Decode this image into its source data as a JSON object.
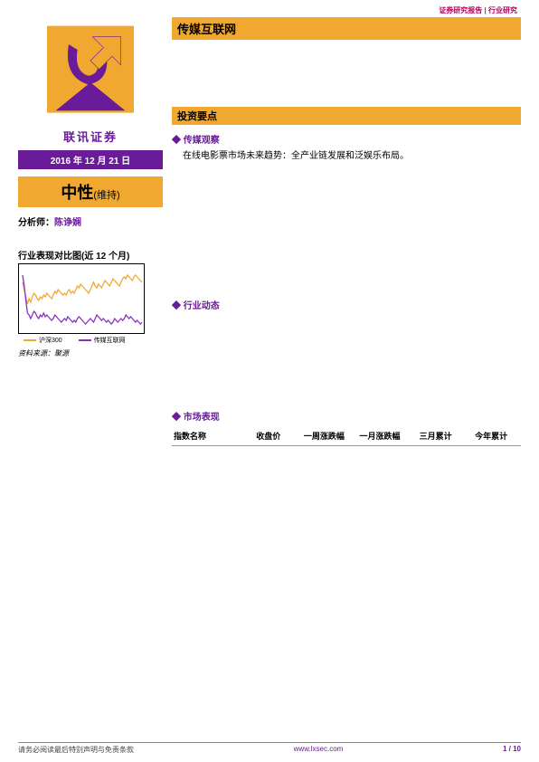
{
  "header": {
    "left": "证券研究报告",
    "sep": " | ",
    "right": "行业研究"
  },
  "logo": {
    "text": "联讯证券",
    "colors": {
      "orange": "#f0a830",
      "purple": "#6a1b9a",
      "dark": "#5a1080"
    }
  },
  "date_bar": "2016 年 12 月 21 日",
  "rating": {
    "main": "中性",
    "sub": "(维持)"
  },
  "analyst": {
    "label": "分析师：",
    "name": "陈诤娴"
  },
  "chart": {
    "title": "行业表现对比图(近 12 个月)",
    "source_label": "资料来源：聚源",
    "legend": [
      {
        "label": "沪深300",
        "color": "#f0a830"
      },
      {
        "label": "传媒互联网",
        "color": "#8a2fc4"
      }
    ],
    "series": {
      "csi300": {
        "color": "#f0a830",
        "width": 1.3,
        "values": [
          42,
          38,
          34,
          30,
          33,
          31,
          34,
          36,
          35,
          33,
          32,
          34,
          33,
          35,
          34,
          36,
          35,
          34,
          33,
          35,
          37,
          36,
          38,
          37,
          36,
          35,
          36,
          35,
          37,
          38,
          36,
          37,
          36,
          38,
          40,
          39,
          41,
          40,
          39,
          38,
          37,
          36,
          38,
          40,
          42,
          40,
          39,
          41,
          40,
          39,
          41,
          43,
          42,
          41,
          40,
          42,
          44,
          43,
          42,
          41,
          40,
          42,
          44,
          45,
          44,
          46,
          45,
          44,
          43,
          45,
          46,
          45,
          44,
          43,
          42
        ]
      },
      "media": {
        "color": "#8a2fc4",
        "width": 1.3,
        "values": [
          46,
          40,
          32,
          25,
          24,
          22,
          24,
          26,
          25,
          23,
          22,
          24,
          23,
          25,
          23,
          24,
          23,
          22,
          21,
          22,
          24,
          23,
          22,
          21,
          20,
          21,
          22,
          21,
          23,
          22,
          21,
          20,
          21,
          20,
          22,
          23,
          22,
          21,
          20,
          19,
          20,
          21,
          22,
          21,
          20,
          22,
          24,
          23,
          22,
          21,
          22,
          21,
          20,
          21,
          20,
          19,
          20,
          22,
          21,
          20,
          21,
          22,
          21,
          22,
          24,
          23,
          22,
          23,
          22,
          21,
          20,
          21,
          20,
          19,
          20
        ]
      }
    },
    "ylim": [
      15,
      50
    ],
    "background": "#ffffff"
  },
  "title_bar": "传媒互联网",
  "subtitle_bar": "投资要点",
  "sections": [
    {
      "head": "传媒观察",
      "body": "在线电影票市场未来趋势：全产业链发展和泛娱乐布局。",
      "spacer": 140
    },
    {
      "head": "行业动态",
      "body": "",
      "spacer": 100
    },
    {
      "head": "市场表现",
      "body": "",
      "spacer": 0
    }
  ],
  "table": {
    "columns": [
      "指数名称",
      "收盘价",
      "一周涨跌幅",
      "一月涨跌幅",
      "三月累计",
      "今年累计"
    ]
  },
  "footer": {
    "left": "请务必阅读最后特别声明与免责条款",
    "url": "www.lxsec.com",
    "page": "1 / 10"
  }
}
